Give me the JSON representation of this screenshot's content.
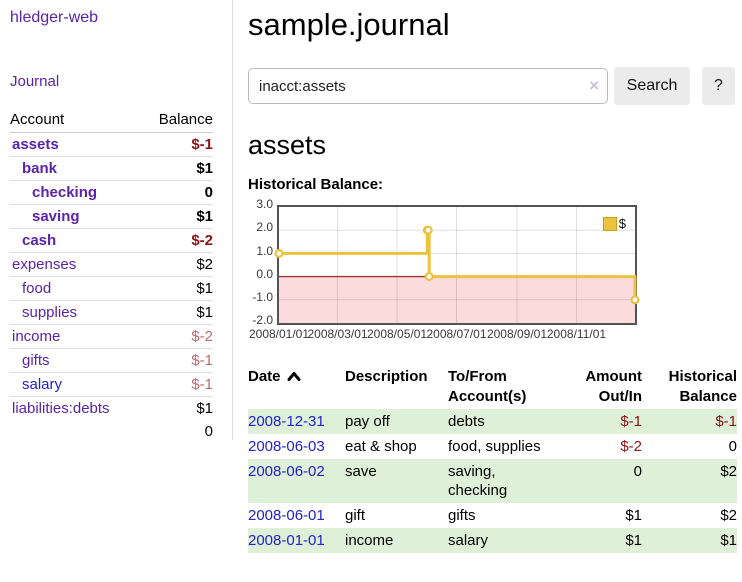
{
  "colors": {
    "purple": "#5b23a8",
    "blue": "#2222cc",
    "negative_strong": "#8b1515",
    "negative_soft": "#bd6c6c",
    "row_green": "#dff0d8",
    "chart_line": "#edc240",
    "chart_negative_fill": "#fbdcdc",
    "chart_zero_line": "#a03232",
    "chart_border": "#545454"
  },
  "app": {
    "brand": "hledger-web",
    "nav_journal": "Journal"
  },
  "sidebar": {
    "accounts_table": {
      "col_account": "Account",
      "col_balance": "Balance",
      "rows": [
        {
          "label": "assets",
          "depth": 0,
          "bold": true,
          "balance": "$-1",
          "balance_class": "neg-strong",
          "link": "purple"
        },
        {
          "label": "bank",
          "depth": 1,
          "bold": true,
          "balance": "$1",
          "balance_class": "",
          "link": "purple"
        },
        {
          "label": "checking",
          "depth": 2,
          "bold": true,
          "balance": "0",
          "balance_class": "",
          "link": "purple"
        },
        {
          "label": "saving",
          "depth": 2,
          "bold": true,
          "balance": "$1",
          "balance_class": "",
          "link": "purple"
        },
        {
          "label": "cash",
          "depth": 1,
          "bold": true,
          "balance": "$-2",
          "balance_class": "neg-strong",
          "link": "purple"
        },
        {
          "label": "expenses",
          "depth": 0,
          "bold": false,
          "balance": "$2",
          "balance_class": "",
          "link": "purple"
        },
        {
          "label": "food",
          "depth": 1,
          "bold": false,
          "balance": "$1",
          "balance_class": "",
          "link": "purple"
        },
        {
          "label": "supplies",
          "depth": 1,
          "bold": false,
          "balance": "$1",
          "balance_class": "",
          "link": "purple"
        },
        {
          "label": "income",
          "depth": 0,
          "bold": false,
          "balance": "$-2",
          "balance_class": "neg-soft",
          "link": "purple"
        },
        {
          "label": "gifts",
          "depth": 1,
          "bold": false,
          "balance": "$-1",
          "balance_class": "neg-soft",
          "link": "purple"
        },
        {
          "label": "salary",
          "depth": 1,
          "bold": false,
          "balance": "$-1",
          "balance_class": "neg-soft",
          "link": "blue"
        },
        {
          "label": "liabilities:debts",
          "depth": 0,
          "bold": false,
          "balance": "$1",
          "balance_class": "",
          "link": "purple"
        }
      ],
      "total": "0"
    }
  },
  "main": {
    "title": "sample.journal",
    "search": {
      "value": "inacct:assets",
      "clear_icon": "×",
      "button_label": "Search",
      "help_label": "?"
    },
    "account_heading": "assets",
    "chart_label": "Historical Balance:",
    "register": {
      "headers": {
        "date": "Date",
        "description": "Description",
        "accounts": "To/From Account(s)",
        "amount": "Amount Out/In",
        "balance": "Historical Balance"
      },
      "rows": [
        {
          "date": "2008-12-31",
          "description": "pay off",
          "accounts": "debts",
          "amount": "$-1",
          "amount_neg": true,
          "balance": "$-1",
          "balance_neg": true,
          "stripe": true
        },
        {
          "date": "2008-06-03",
          "description": "eat & shop",
          "accounts": "food, supplies",
          "amount": "$-2",
          "amount_neg": true,
          "balance": "0",
          "balance_neg": false,
          "stripe": false
        },
        {
          "date": "2008-06-02",
          "description": "save",
          "accounts": "saving, checking",
          "amount": "0",
          "amount_neg": false,
          "balance": "$2",
          "balance_neg": false,
          "stripe": true
        },
        {
          "date": "2008-06-01",
          "description": "gift",
          "accounts": "gifts",
          "amount": "$1",
          "amount_neg": false,
          "balance": "$2",
          "balance_neg": false,
          "stripe": false
        },
        {
          "date": "2008-01-01",
          "description": "income",
          "accounts": "salary",
          "amount": "$1",
          "amount_neg": false,
          "balance": "$1",
          "balance_neg": false,
          "stripe": true
        }
      ]
    }
  },
  "chart_data": {
    "type": "line",
    "step": true,
    "title": "Historical Balance:",
    "legend": {
      "label": "$",
      "position": "top-right"
    },
    "x_range": [
      "2008-01-01",
      "2008-12-31"
    ],
    "x_tick_labels": [
      "2008/01/01",
      "2008/03/01",
      "2008/05/01",
      "2008/07/01",
      "2008/09/01",
      "2008/11/01"
    ],
    "x_tick_dates": [
      "2008-01-01",
      "2008-03-01",
      "2008-05-01",
      "2008-07-01",
      "2008-09-01",
      "2008-11-01"
    ],
    "y_ticks": [
      3.0,
      2.0,
      1.0,
      0.0,
      -1.0,
      -2.0
    ],
    "ylim": [
      -2,
      3
    ],
    "grid": true,
    "series": [
      {
        "name": "$",
        "points": [
          [
            "2008-01-01",
            1
          ],
          [
            "2008-06-01",
            2
          ],
          [
            "2008-06-02",
            2
          ],
          [
            "2008-06-03",
            0
          ],
          [
            "2008-12-31",
            -1
          ]
        ]
      }
    ]
  }
}
